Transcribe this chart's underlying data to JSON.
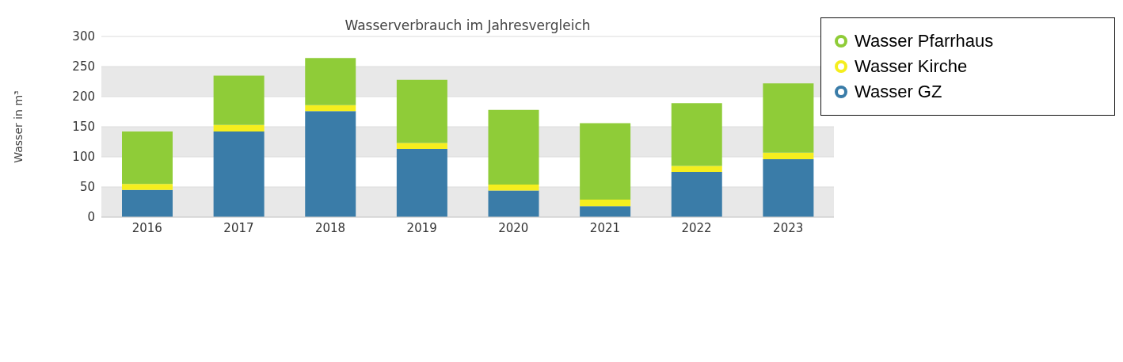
{
  "chart_data": {
    "type": "bar",
    "title": "Wasserverbrauch im Jahresvergleich",
    "ylabel": "Wasser in m³",
    "categories": [
      "2016",
      "2017",
      "2018",
      "2019",
      "2020",
      "2021",
      "2022",
      "2023"
    ],
    "stacked": true,
    "series": [
      {
        "name": "Wasser GZ",
        "color": "#3a7ca8",
        "values": [
          45,
          142,
          176,
          113,
          44,
          18,
          75,
          96
        ]
      },
      {
        "name": "Wasser Kirche",
        "color": "#f5ee1e",
        "values": [
          10,
          11,
          10,
          10,
          10,
          11,
          10,
          11
        ]
      },
      {
        "name": "Wasser Pfarrhaus",
        "color": "#8fcc38",
        "values": [
          87,
          82,
          78,
          105,
          124,
          127,
          104,
          115
        ]
      }
    ],
    "ylim": [
      0,
      300
    ],
    "yticks": [
      0,
      50,
      100,
      150,
      200,
      250,
      300
    ],
    "grid": "y",
    "legend": "top right"
  }
}
